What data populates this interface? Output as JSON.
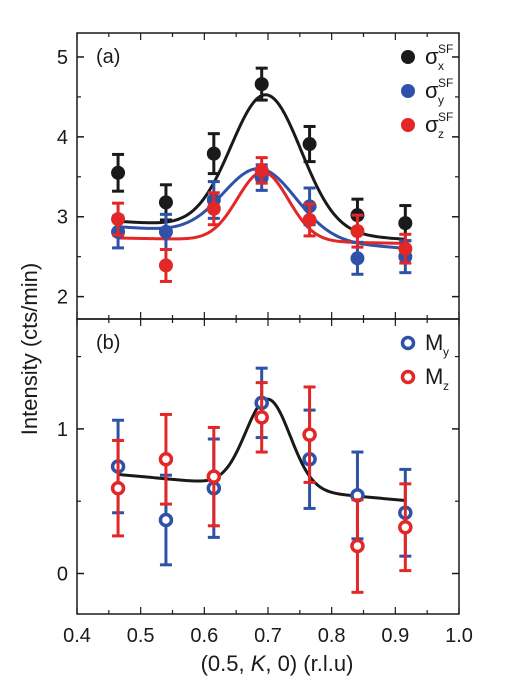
{
  "colors": {
    "x": "#1a1a1a",
    "y": "#2f52a8",
    "z": "#e32626",
    "fit": "#1a1a1a",
    "frame": "#1a1a1a"
  },
  "chart_data": [
    {
      "type": "scatter",
      "panel_label": "(a)",
      "xlim": [
        0.4,
        1.0
      ],
      "ylim": [
        1.72,
        5.3
      ],
      "y_ticks": [
        "2",
        "3",
        "4",
        "5"
      ],
      "grid": false,
      "legend_position": "top-right",
      "series": [
        {
          "name": "σ",
          "sub": "x",
          "sup": "SF",
          "color_key": "x",
          "marker": "filled-circle",
          "x": [
            0.4645,
            0.5397,
            0.6149,
            0.6901,
            0.7653,
            0.8405,
            0.9157
          ],
          "y": [
            3.55,
            3.18,
            3.79,
            4.66,
            3.91,
            3.02,
            2.92
          ],
          "err": [
            0.23,
            0.22,
            0.25,
            0.2,
            0.22,
            0.2,
            0.22
          ]
        },
        {
          "name": "σ",
          "sub": "y",
          "sup": "SF",
          "color_key": "y",
          "marker": "filled-circle",
          "x": [
            0.4645,
            0.5397,
            0.6149,
            0.6901,
            0.7653,
            0.8405,
            0.9157
          ],
          "y": [
            2.81,
            2.81,
            3.21,
            3.49,
            3.13,
            2.48,
            2.5
          ],
          "err": [
            0.2,
            0.22,
            0.23,
            0.16,
            0.23,
            0.2,
            0.2
          ]
        },
        {
          "name": "σ",
          "sub": "z",
          "sup": "SF",
          "color_key": "z",
          "marker": "filled-circle",
          "x": [
            0.4645,
            0.5397,
            0.6149,
            0.6901,
            0.7653,
            0.8405,
            0.9157
          ],
          "y": [
            2.97,
            2.39,
            3.1,
            3.58,
            2.96,
            2.82,
            2.6
          ],
          "err": [
            0.2,
            0.2,
            0.2,
            0.16,
            0.2,
            0.2,
            0.18
          ]
        }
      ],
      "fits": [
        {
          "color_key": "x",
          "baseline": 2.83,
          "slope": -0.5,
          "amp": 1.7,
          "center": 0.697,
          "sigma": 0.055
        },
        {
          "color_key": "y",
          "baseline": 2.74,
          "slope": -0.6,
          "amp": 0.86,
          "center": 0.687,
          "sigma": 0.057
        },
        {
          "color_key": "z",
          "baseline": 2.7,
          "slope": -0.15,
          "amp": 0.86,
          "center": 0.692,
          "sigma": 0.04
        }
      ]
    },
    {
      "type": "scatter",
      "panel_label": "(b)",
      "xlim": [
        0.4,
        1.0
      ],
      "ylim": [
        -0.28,
        1.76
      ],
      "x_ticks": [
        "0.4",
        "0.5",
        "0.6",
        "0.7",
        "0.8",
        "0.9",
        "1.0"
      ],
      "y_ticks": [
        "0",
        "1"
      ],
      "xlabel_parts": [
        "(0.5, ",
        "K",
        ", 0) (r.l.u)"
      ],
      "grid": false,
      "legend_position": "top-right",
      "series": [
        {
          "name": "M",
          "sub": "y",
          "color_key": "y",
          "marker": "open-circle",
          "x": [
            0.4645,
            0.5397,
            0.6149,
            0.6901,
            0.7653,
            0.8405,
            0.9157
          ],
          "y": [
            0.74,
            0.37,
            0.59,
            1.18,
            0.79,
            0.54,
            0.42
          ],
          "err": [
            0.32,
            0.31,
            0.34,
            0.24,
            0.34,
            0.3,
            0.3
          ]
        },
        {
          "name": "M",
          "sub": "z",
          "color_key": "z",
          "marker": "open-circle",
          "x": [
            0.4645,
            0.5397,
            0.6149,
            0.6901,
            0.7653,
            0.8405,
            0.9157
          ],
          "y": [
            0.59,
            0.79,
            0.67,
            1.08,
            0.96,
            0.19,
            0.32
          ],
          "err": [
            0.33,
            0.31,
            0.34,
            0.24,
            0.33,
            0.32,
            0.3
          ]
        }
      ],
      "fits": [
        {
          "color_key": "fit",
          "baseline": 0.595,
          "slope": -0.4,
          "amp": 0.615,
          "center": 0.7,
          "sigma": 0.035
        }
      ]
    }
  ],
  "ylabel": "Intensity (cts/min)"
}
